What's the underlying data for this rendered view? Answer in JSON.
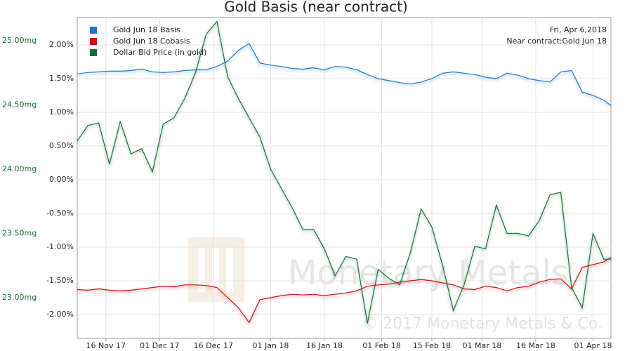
{
  "chart_data": {
    "type": "line",
    "title": "Gold Basis (near contract)",
    "annotations": [
      "Fri, Apr 6,2018",
      "Near contract:Gold Jun 18"
    ],
    "watermark": [
      "Monetary Metals",
      "© 2017 Monetary Metals & Co."
    ],
    "x": [
      "2017-11-08",
      "2017-11-11",
      "2017-11-14",
      "2017-11-17",
      "2017-11-20",
      "2017-11-23",
      "2017-11-26",
      "2017-11-29",
      "2017-12-02",
      "2017-12-05",
      "2017-12-08",
      "2017-12-11",
      "2017-12-14",
      "2017-12-17",
      "2017-12-20",
      "2017-12-23",
      "2017-12-26",
      "2017-12-29",
      "2018-01-01",
      "2018-01-04",
      "2018-01-07",
      "2018-01-10",
      "2018-01-13",
      "2018-01-16",
      "2018-01-19",
      "2018-01-22",
      "2018-01-25",
      "2018-01-28",
      "2018-01-31",
      "2018-02-03",
      "2018-02-06",
      "2018-02-09",
      "2018-02-12",
      "2018-02-15",
      "2018-02-18",
      "2018-02-21",
      "2018-02-24",
      "2018-02-27",
      "2018-03-02",
      "2018-03-05",
      "2018-03-08",
      "2018-03-11",
      "2018-03-14",
      "2018-03-17",
      "2018-03-20",
      "2018-03-23",
      "2018-03-26",
      "2018-03-29",
      "2018-04-01",
      "2018-04-04",
      "2018-04-06"
    ],
    "xlim": [
      "2017-11-08",
      "2018-04-06"
    ],
    "xticks": [
      {
        "value": "2017-11-16",
        "label": "16 Nov 17"
      },
      {
        "value": "2017-12-01",
        "label": "01 Dec 17"
      },
      {
        "value": "2017-12-16",
        "label": "16 Dec 17"
      },
      {
        "value": "2018-01-01",
        "label": "01 Jan 18"
      },
      {
        "value": "2018-01-16",
        "label": "16 Jan 18"
      },
      {
        "value": "2018-02-01",
        "label": "01 Feb 18"
      },
      {
        "value": "2018-02-15",
        "label": "15 Feb 18"
      },
      {
        "value": "2018-03-01",
        "label": "01 Mar 18"
      },
      {
        "value": "2018-03-16",
        "label": "16 Mar 18"
      },
      {
        "value": "2018-04-01",
        "label": "01 Apr 18"
      }
    ],
    "ylim": [
      -2.354,
      2.406
    ],
    "yticks": [
      {
        "value": 2,
        "label": "2.00%"
      },
      {
        "value": 1.5,
        "label": "1.50%"
      },
      {
        "value": 1,
        "label": "1.00%"
      },
      {
        "value": 0.5,
        "label": "0.50%"
      },
      {
        "value": 0,
        "label": "0.00%"
      },
      {
        "value": -0.5,
        "label": "-0.50%"
      },
      {
        "value": -1,
        "label": "-1.00%"
      },
      {
        "value": -1.5,
        "label": "-1.50%"
      },
      {
        "value": -2,
        "label": "-2.00%"
      }
    ],
    "y2lim": [
      22.683,
      25.18
    ],
    "y2ticks": [
      {
        "value": 25,
        "label": "25.00mg"
      },
      {
        "value": 24.5,
        "label": "24.50mg"
      },
      {
        "value": 24,
        "label": "24.00mg"
      },
      {
        "value": 23.5,
        "label": "23.50mg"
      },
      {
        "value": 23,
        "label": "23.00mg"
      }
    ],
    "grid": true,
    "legend": "top-left",
    "series": [
      {
        "name": "Gold Jun 18 Basis",
        "color": "#1f78c8",
        "values": [
          1.57,
          1.59,
          1.6,
          1.61,
          1.61,
          1.62,
          1.64,
          1.6,
          1.59,
          1.6,
          1.62,
          1.63,
          1.63,
          1.68,
          1.76,
          1.92,
          2.02,
          1.73,
          1.7,
          1.68,
          1.65,
          1.64,
          1.66,
          1.63,
          1.68,
          1.67,
          1.63,
          1.56,
          1.5,
          1.47,
          1.44,
          1.42,
          1.45,
          1.5,
          1.58,
          1.6,
          1.58,
          1.56,
          1.52,
          1.5,
          1.58,
          1.55,
          1.5,
          1.47,
          1.45,
          1.6,
          1.62,
          1.3,
          1.25,
          1.18,
          1.1
        ]
      },
      {
        "name": "Gold Jun 18 Cobasis",
        "color": "#cc1111",
        "values": [
          -1.63,
          -1.64,
          -1.62,
          -1.64,
          -1.65,
          -1.64,
          -1.62,
          -1.6,
          -1.58,
          -1.59,
          -1.56,
          -1.56,
          -1.57,
          -1.6,
          -1.75,
          -1.9,
          -2.12,
          -1.78,
          -1.75,
          -1.72,
          -1.7,
          -1.71,
          -1.7,
          -1.72,
          -1.7,
          -1.68,
          -1.65,
          -1.58,
          -1.56,
          -1.55,
          -1.52,
          -1.5,
          -1.48,
          -1.5,
          -1.53,
          -1.56,
          -1.62,
          -1.63,
          -1.58,
          -1.6,
          -1.65,
          -1.6,
          -1.58,
          -1.52,
          -1.48,
          -1.47,
          -1.62,
          -1.3,
          -1.26,
          -1.22,
          -1.15
        ]
      },
      {
        "name": "Dollar Bid Price (in gold)",
        "color": "#1a6b3a",
        "axis": "y2",
        "values": [
          24.22,
          24.34,
          24.36,
          24.04,
          24.37,
          24.12,
          24.16,
          23.98,
          24.35,
          24.4,
          24.55,
          24.75,
          25.05,
          25.15,
          24.72,
          24.55,
          24.4,
          24.25,
          24.0,
          23.85,
          23.7,
          23.53,
          23.53,
          23.38,
          23.17,
          23.32,
          23.3,
          22.8,
          23.22,
          23.15,
          23.1,
          23.35,
          23.69,
          23.55,
          23.25,
          22.9,
          23.1,
          23.4,
          23.38,
          23.72,
          23.5,
          23.5,
          23.48,
          23.6,
          23.8,
          23.82,
          23.08,
          22.92,
          23.5,
          23.3,
          23.3
        ]
      }
    ]
  }
}
